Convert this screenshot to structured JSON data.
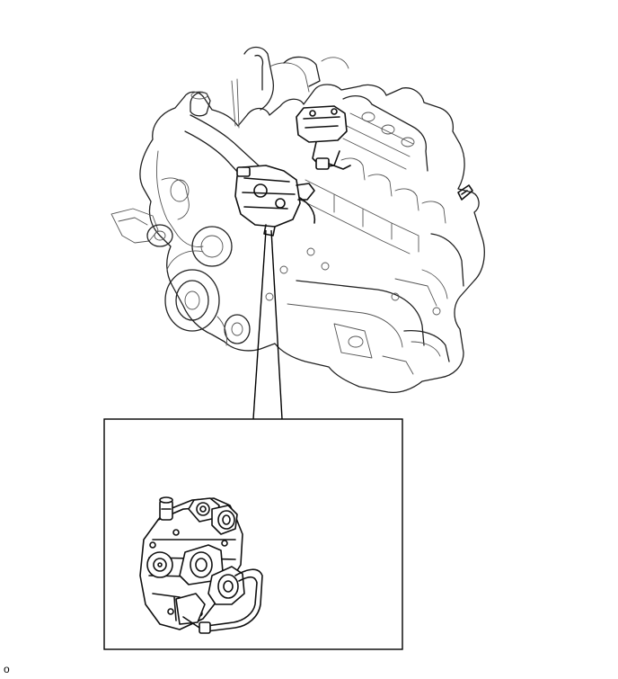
{
  "diagram": {
    "id_label": "o"
  }
}
